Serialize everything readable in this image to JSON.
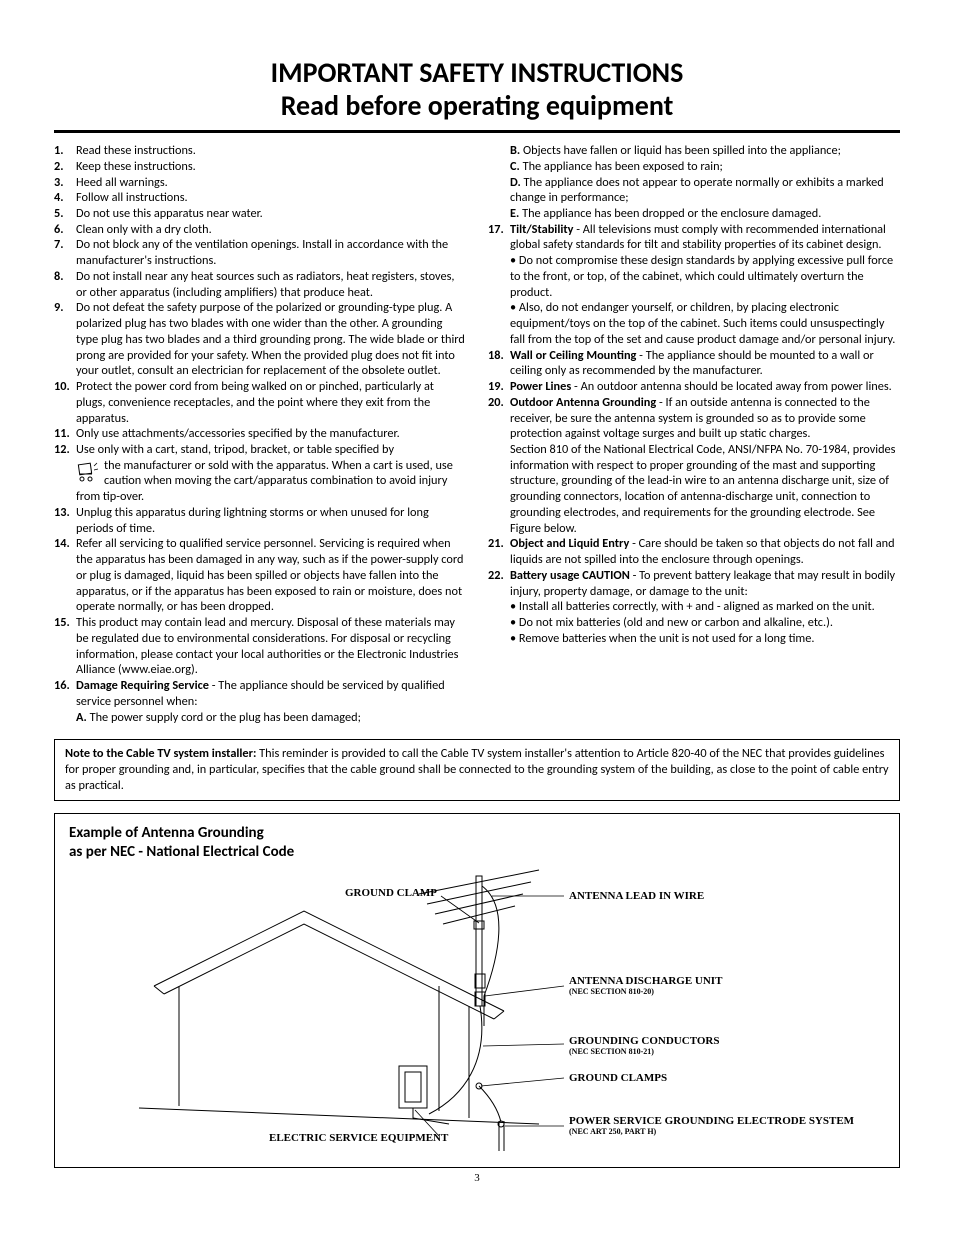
{
  "title_line1": "IMPORTANT SAFETY INSTRUCTIONS",
  "title_line2": "Read before operating equipment",
  "left_items": [
    {
      "n": "1.",
      "t": "Read these instructions."
    },
    {
      "n": "2.",
      "t": "Keep these instructions."
    },
    {
      "n": "3.",
      "t": "Heed all warnings."
    },
    {
      "n": "4.",
      "t": "Follow all instructions."
    },
    {
      "n": "5.",
      "t": "Do not use this apparatus near water."
    },
    {
      "n": "6.",
      "t": "Clean only with a dry cloth."
    },
    {
      "n": "7.",
      "t": "Do not block any of the ventilation openings. Install in accordance with the manufacturer's instructions."
    },
    {
      "n": "8.",
      "t": "Do not install near any heat sources such as radiators, heat registers, stoves, or other apparatus (including amplifiers) that produce heat."
    },
    {
      "n": "9.",
      "t": "Do not defeat the safety purpose of the polarized or grounding-type plug. A polarized plug has two blades with one wider than the other. A grounding type plug has two blades and a third grounding prong. The wide blade or third prong are provided for your safety. When the provided plug does not fit into your outlet, consult an electrician for replacement of the obsolete outlet."
    },
    {
      "n": "10.",
      "t": "Protect the power cord from being walked on or pinched, particularly at plugs, convenience receptacles, and the point where they exit from the apparatus."
    },
    {
      "n": "11.",
      "t": "Only use attachments/accessories specified by the manufacturer."
    },
    {
      "n": "12.",
      "cart": true,
      "t": "Use only with a cart, stand, tripod, bracket, or table specified by the manufacturer or sold with the apparatus. When a cart is used, use caution when moving the cart/apparatus combination to avoid injury from tip-over."
    },
    {
      "n": "13.",
      "t": "Unplug this apparatus during lightning storms or when unused for long periods of time."
    },
    {
      "n": "14.",
      "t": "Refer all servicing to qualified service personnel. Servicing is required when the apparatus has been damaged in any way, such as if the power-supply cord or plug is damaged, liquid has been spilled or objects have fallen into the apparatus, or if the apparatus has been exposed to rain or moisture, does not operate normally, or has been dropped."
    },
    {
      "n": "15.",
      "t": "This product may contain lead and mercury. Disposal of these materials may be regulated due to environmental considerations. For disposal or recycling information, please contact your local authorities or the Electronic Industries Alliance (www.eiae.org)."
    }
  ],
  "item16_num": "16.",
  "item16_title": "Damage Requiring Service",
  "item16_text": " - The appliance should be serviced by qualified service personnel when:",
  "item16_a_label": "A.",
  "item16_a": " The power supply cord or the plug has been damaged;",
  "right_pre_subs": [
    {
      "l": "B.",
      "t": " Objects have fallen or liquid has been spilled into the appliance;"
    },
    {
      "l": "C.",
      "t": " The appliance has been exposed to rain;"
    },
    {
      "l": "D.",
      "t": " The appliance does not appear to operate normally or exhibits a marked change in performance;"
    },
    {
      "l": "E.",
      "t": " The appliance has been dropped or the enclosure damaged."
    }
  ],
  "right_items": [
    {
      "n": "17.",
      "title": "Tilt/Stability",
      "t": " - All televisions must comply with recommended international global safety standards for tilt and stability properties of its cabinet design.",
      "bullets": [
        "• Do not compromise these design standards by applying excessive pull force to the front, or top, of the cabinet, which could ultimately overturn the product.",
        "• Also, do not endanger yourself, or children, by placing electronic equipment/toys on the top of the cabinet. Such items could unsuspectingly fall from the top of the set and cause product damage and/or personal injury."
      ]
    },
    {
      "n": "18.",
      "title": "Wall or Ceiling Mounting",
      "t": " - The appliance should be mounted to a wall or ceiling only as recommended by the manufacturer."
    },
    {
      "n": "19.",
      "title": "Power Lines",
      "t": " - An outdoor antenna should be located away from power lines."
    },
    {
      "n": "20.",
      "title": "Outdoor Antenna Grounding",
      "t": " - If an outside antenna is connected to the receiver, be sure the antenna system is grounded so as to provide some protection against voltage surges and built up static charges.",
      "extra": "Section 810 of the National Electrical Code, ANSI/NFPA No. 70-1984, provides information with respect to proper grounding of the mast and supporting structure, grounding of the lead-in wire to an antenna discharge unit, size of grounding connectors, location of antenna-discharge unit, connection to grounding electrodes, and requirements for the grounding electrode. See Figure below."
    },
    {
      "n": "21.",
      "title": "Object and Liquid Entry",
      "t": " - Care should be taken so that objects do not fall and liquids are not spilled into the enclosure through openings."
    },
    {
      "n": "22.",
      "title": "Battery usage CAUTION",
      "t": " - To prevent battery leakage that may result in bodily injury, property damage, or damage to the unit:",
      "bullets": [
        "• Install all batteries correctly, with + and - aligned as marked on the unit.",
        "• Do not mix batteries (old and new or carbon and alkaline, etc.).",
        "• Remove batteries when the unit is not used for a long time."
      ]
    }
  ],
  "note_title": "Note to the Cable TV system installer:",
  "note_text": " This reminder is provided to call the Cable TV system installer's attention to Article 820-40 of the NEC that provides guidelines for proper grounding and, in particular, specifies that the cable ground shall be connected to the grounding system of the building, as close to the point of cable entry as practical.",
  "diagram_title1": "Example of Antenna Grounding",
  "diagram_title2": "as per NEC - National Electrical Code",
  "labels": {
    "ground_clamp_top": "GROUND CLAMP",
    "antenna_lead": "ANTENNA LEAD IN WIRE",
    "discharge": "ANTENNA DISCHARGE UNIT",
    "discharge_sub": "(NEC SECTION 810-20)",
    "conductors": "GROUNDING CONDUCTORS",
    "conductors_sub": "(NEC SECTION 810-21)",
    "clamps": "GROUND CLAMPS",
    "electrode": "POWER SERVICE GROUNDING ELECTRODE SYSTEM",
    "electrode_sub": "(NEC ART 250, PART H)",
    "service": "ELECTRIC SERVICE EQUIPMENT"
  },
  "page_number": "3"
}
